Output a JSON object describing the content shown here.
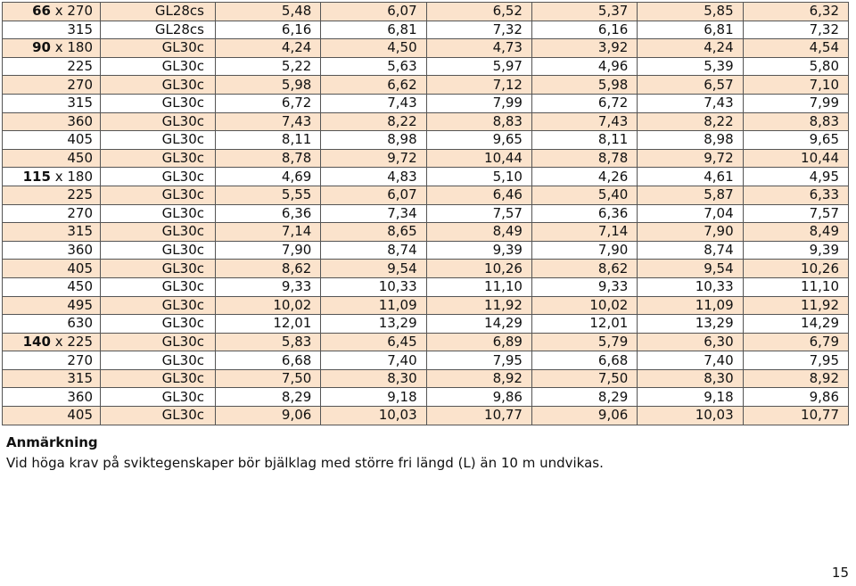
{
  "rows": [
    {
      "w": "66",
      "h": "270",
      "cls": "GL28cs",
      "v": [
        "5,48",
        "6,07",
        "6,52",
        "5,37",
        "5,85",
        "6,32"
      ],
      "shade": true
    },
    {
      "w": "",
      "h": "315",
      "cls": "GL28cs",
      "v": [
        "6,16",
        "6,81",
        "7,32",
        "6,16",
        "6,81",
        "7,32"
      ],
      "shade": false
    },
    {
      "w": "90",
      "h": "180",
      "cls": "GL30c",
      "v": [
        "4,24",
        "4,50",
        "4,73",
        "3,92",
        "4,24",
        "4,54"
      ],
      "shade": true
    },
    {
      "w": "",
      "h": "225",
      "cls": "GL30c",
      "v": [
        "5,22",
        "5,63",
        "5,97",
        "4,96",
        "5,39",
        "5,80"
      ],
      "shade": false
    },
    {
      "w": "",
      "h": "270",
      "cls": "GL30c",
      "v": [
        "5,98",
        "6,62",
        "7,12",
        "5,98",
        "6,57",
        "7,10"
      ],
      "shade": true
    },
    {
      "w": "",
      "h": "315",
      "cls": "GL30c",
      "v": [
        "6,72",
        "7,43",
        "7,99",
        "6,72",
        "7,43",
        "7,99"
      ],
      "shade": false
    },
    {
      "w": "",
      "h": "360",
      "cls": "GL30c",
      "v": [
        "7,43",
        "8,22",
        "8,83",
        "7,43",
        "8,22",
        "8,83"
      ],
      "shade": true
    },
    {
      "w": "",
      "h": "405",
      "cls": "GL30c",
      "v": [
        "8,11",
        "8,98",
        "9,65",
        "8,11",
        "8,98",
        "9,65"
      ],
      "shade": false
    },
    {
      "w": "",
      "h": "450",
      "cls": "GL30c",
      "v": [
        "8,78",
        "9,72",
        "10,44",
        "8,78",
        "9,72",
        "10,44"
      ],
      "shade": true
    },
    {
      "w": "115",
      "h": "180",
      "cls": "GL30c",
      "v": [
        "4,69",
        "4,83",
        "5,10",
        "4,26",
        "4,61",
        "4,95"
      ],
      "shade": false
    },
    {
      "w": "",
      "h": "225",
      "cls": "GL30c",
      "v": [
        "5,55",
        "6,07",
        "6,46",
        "5,40",
        "5,87",
        "6,33"
      ],
      "shade": true
    },
    {
      "w": "",
      "h": "270",
      "cls": "GL30c",
      "v": [
        "6,36",
        "7,34",
        "7,57",
        "6,36",
        "7,04",
        "7,57"
      ],
      "shade": false
    },
    {
      "w": "",
      "h": "315",
      "cls": "GL30c",
      "v": [
        "7,14",
        "8,65",
        "8,49",
        "7,14",
        "7,90",
        "8,49"
      ],
      "shade": true
    },
    {
      "w": "",
      "h": "360",
      "cls": "GL30c",
      "v": [
        "7,90",
        "8,74",
        "9,39",
        "7,90",
        "8,74",
        "9,39"
      ],
      "shade": false
    },
    {
      "w": "",
      "h": "405",
      "cls": "GL30c",
      "v": [
        "8,62",
        "9,54",
        "10,26",
        "8,62",
        "9,54",
        "10,26"
      ],
      "shade": true
    },
    {
      "w": "",
      "h": "450",
      "cls": "GL30c",
      "v": [
        "9,33",
        "10,33",
        "11,10",
        "9,33",
        "10,33",
        "11,10"
      ],
      "shade": false
    },
    {
      "w": "",
      "h": "495",
      "cls": "GL30c",
      "v": [
        "10,02",
        "11,09",
        "11,92",
        "10,02",
        "11,09",
        "11,92"
      ],
      "shade": true
    },
    {
      "w": "",
      "h": "630",
      "cls": "GL30c",
      "v": [
        "12,01",
        "13,29",
        "14,29",
        "12,01",
        "13,29",
        "14,29"
      ],
      "shade": false
    },
    {
      "w": "140",
      "h": "225",
      "cls": "GL30c",
      "v": [
        "5,83",
        "6,45",
        "6,89",
        "5,79",
        "6,30",
        "6,79"
      ],
      "shade": true
    },
    {
      "w": "",
      "h": "270",
      "cls": "GL30c",
      "v": [
        "6,68",
        "7,40",
        "7,95",
        "6,68",
        "7,40",
        "7,95"
      ],
      "shade": false
    },
    {
      "w": "",
      "h": "315",
      "cls": "GL30c",
      "v": [
        "7,50",
        "8,30",
        "8,92",
        "7,50",
        "8,30",
        "8,92"
      ],
      "shade": true
    },
    {
      "w": "",
      "h": "360",
      "cls": "GL30c",
      "v": [
        "8,29",
        "9,18",
        "9,86",
        "8,29",
        "9,18",
        "9,86"
      ],
      "shade": false
    },
    {
      "w": "",
      "h": "405",
      "cls": "GL30c",
      "v": [
        "9,06",
        "10,03",
        "10,77",
        "9,06",
        "10,03",
        "10,77"
      ],
      "shade": true
    }
  ],
  "note": {
    "heading": "Anmärkning",
    "text": "Vid höga krav på sviktegenskaper bör bjälklag med större fri längd (L) än 10 m undvikas."
  },
  "page_number": "15",
  "colors": {
    "shade": "#fbe3cc",
    "border": "#555555"
  }
}
